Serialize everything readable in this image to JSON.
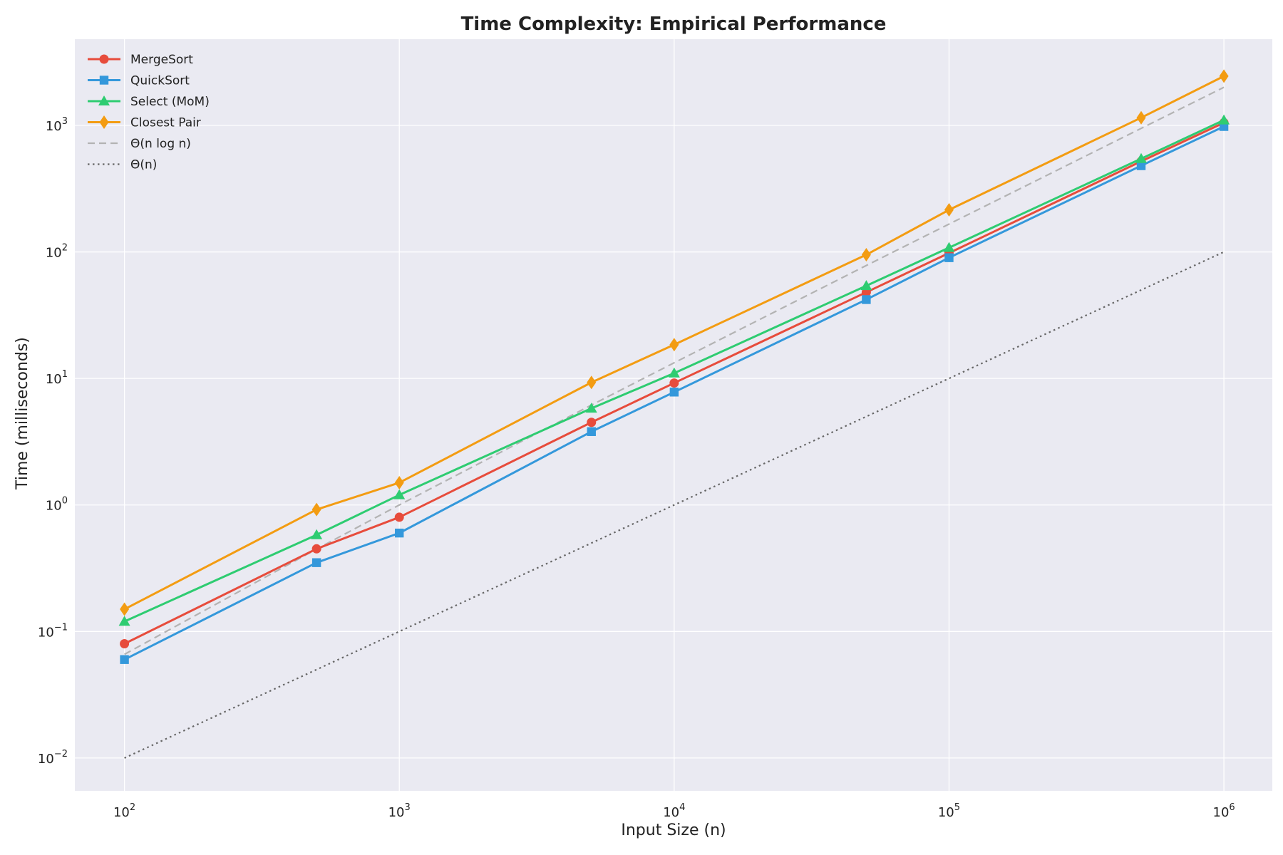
{
  "chart_data": {
    "type": "line",
    "title": "Time Complexity: Empirical Performance",
    "xlabel": "Input Size (n)",
    "ylabel": "Time (milliseconds)",
    "x_scale": "log",
    "y_scale": "log",
    "xlim": [
      66,
      1500000
    ],
    "ylim": [
      0.0055,
      4800
    ],
    "grid": true,
    "legend_position": "top-left",
    "background_color": "#eaeaf2",
    "x_ticks": [
      100,
      1000,
      10000,
      100000,
      1000000
    ],
    "x_tick_labels": [
      {
        "base": "10",
        "exp": "2"
      },
      {
        "base": "10",
        "exp": "3"
      },
      {
        "base": "10",
        "exp": "4"
      },
      {
        "base": "10",
        "exp": "5"
      },
      {
        "base": "10",
        "exp": "6"
      }
    ],
    "y_ticks": [
      0.01,
      0.1,
      1,
      10,
      100,
      1000
    ],
    "y_tick_labels": [
      {
        "base": "10",
        "exp": "−2"
      },
      {
        "base": "10",
        "exp": "−1"
      },
      {
        "base": "10",
        "exp": "0"
      },
      {
        "base": "10",
        "exp": "1"
      },
      {
        "base": "10",
        "exp": "2"
      },
      {
        "base": "10",
        "exp": "3"
      }
    ],
    "series": [
      {
        "name": "MergeSort",
        "color": "#e74c3c",
        "marker": "circle",
        "line": "solid",
        "x": [
          100,
          500,
          1000,
          5000,
          10000,
          50000,
          100000,
          500000,
          1000000
        ],
        "y": [
          0.08,
          0.45,
          0.8,
          4.5,
          9.2,
          48,
          98,
          520,
          1050
        ]
      },
      {
        "name": "QuickSort",
        "color": "#3498db",
        "marker": "square",
        "line": "solid",
        "x": [
          100,
          500,
          1000,
          5000,
          10000,
          50000,
          100000,
          500000,
          1000000
        ],
        "y": [
          0.06,
          0.35,
          0.6,
          3.8,
          7.8,
          42,
          90,
          480,
          980
        ]
      },
      {
        "name": "Select (MoM)",
        "color": "#2ecc71",
        "marker": "triangle",
        "line": "solid",
        "x": [
          100,
          500,
          1000,
          5000,
          10000,
          50000,
          100000,
          500000,
          1000000
        ],
        "y": [
          0.12,
          0.58,
          1.2,
          5.8,
          11,
          54,
          108,
          545,
          1100
        ]
      },
      {
        "name": "Closest Pair",
        "color": "#f39c12",
        "marker": "diamond",
        "line": "solid",
        "x": [
          100,
          500,
          1000,
          5000,
          10000,
          50000,
          100000,
          500000,
          1000000
        ],
        "y": [
          0.15,
          0.92,
          1.5,
          9.3,
          18.5,
          95,
          215,
          1150,
          2450
        ]
      },
      {
        "name": "Θ(n log n)",
        "color": "#b3b3b3",
        "marker": "none",
        "line": "dashed",
        "x": [
          100,
          500,
          1000,
          5000,
          10000,
          50000,
          100000,
          500000,
          1000000
        ],
        "y": [
          0.066,
          0.448,
          1.0,
          6.16,
          13.3,
          78.1,
          166,
          947,
          2000
        ]
      },
      {
        "name": "Θ(n)",
        "color": "#666666",
        "marker": "none",
        "line": "dotted",
        "x": [
          100,
          1000000
        ],
        "y": [
          0.01,
          100
        ]
      }
    ]
  }
}
